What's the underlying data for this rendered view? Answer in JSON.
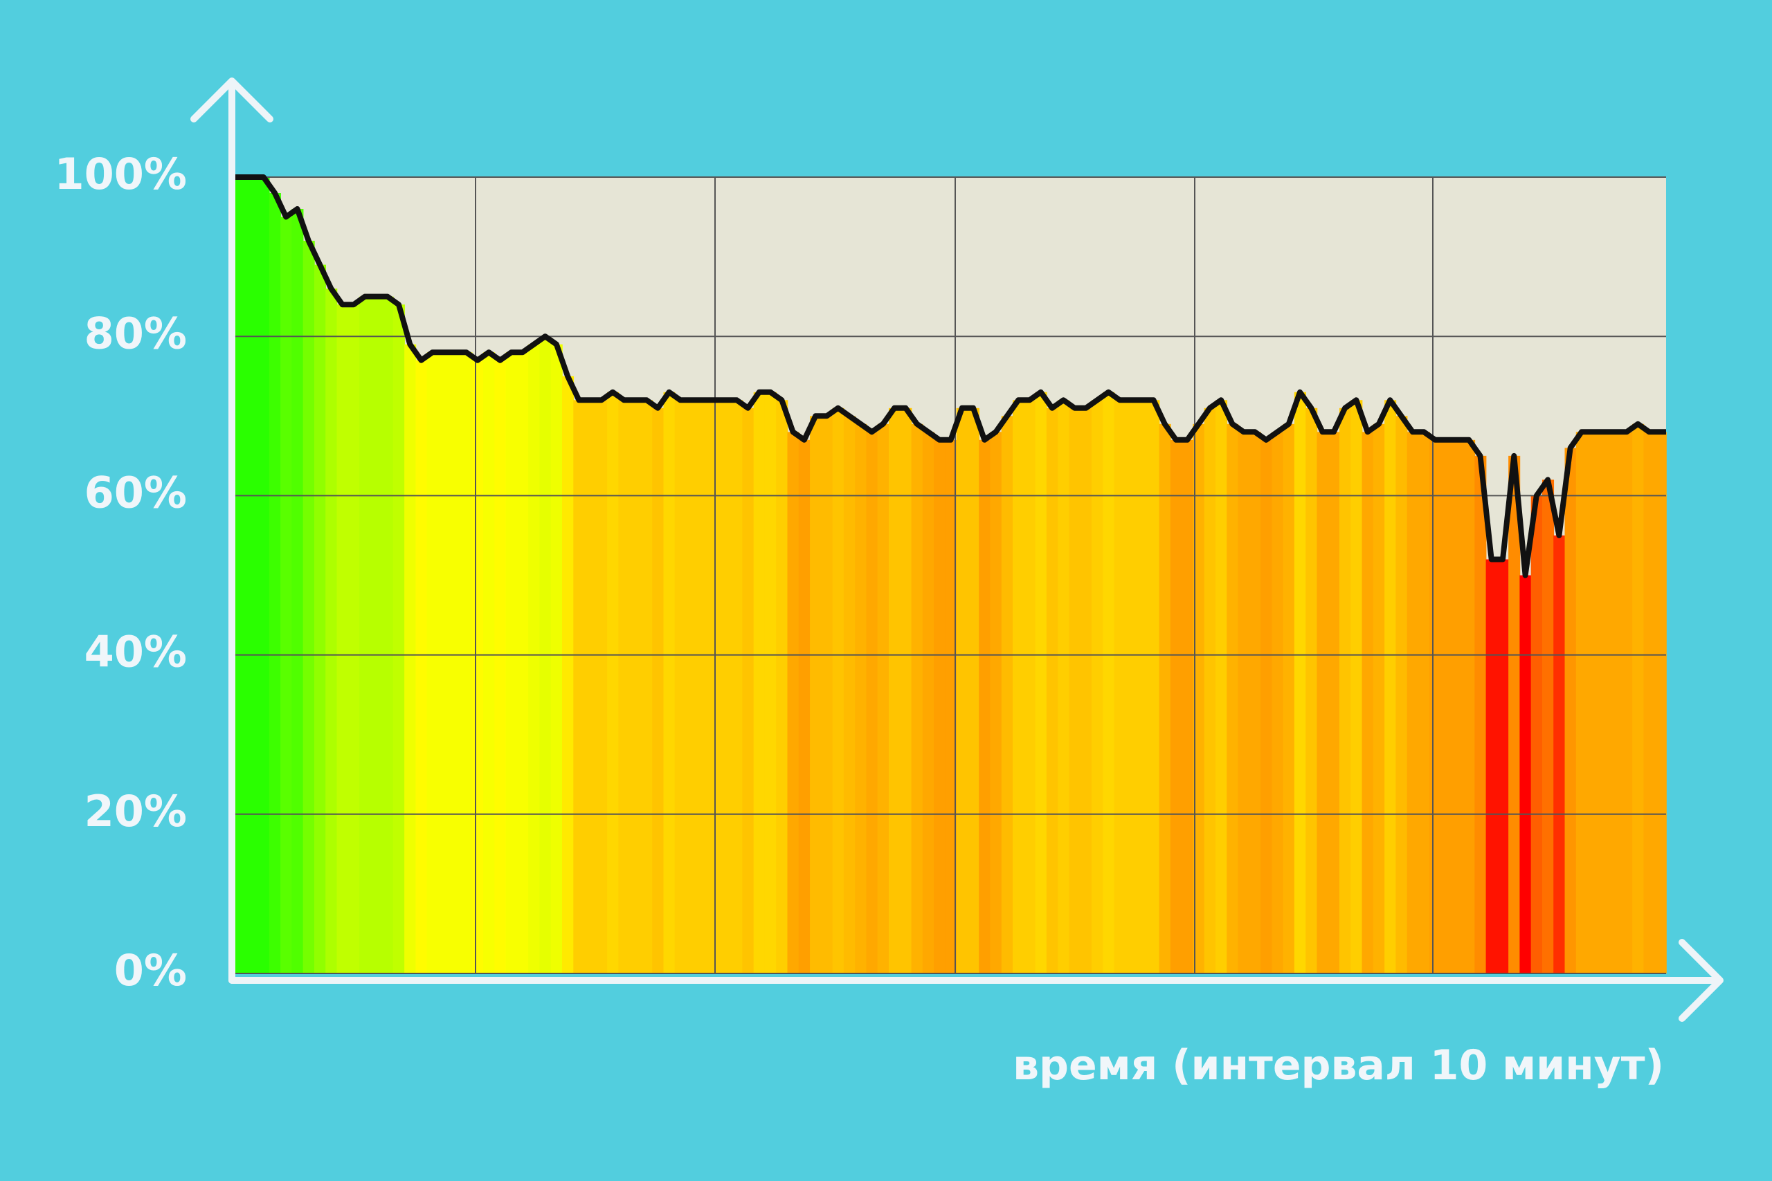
{
  "chart_data": {
    "type": "area",
    "x_label": "время (интервал 10 минут)",
    "ylim": [
      0,
      100
    ],
    "yticks": [
      {
        "value": 0,
        "label": "0%"
      },
      {
        "value": 20,
        "label": "20%"
      },
      {
        "value": 40,
        "label": "40%"
      },
      {
        "value": 60,
        "label": "60%"
      },
      {
        "value": 80,
        "label": "80%"
      },
      {
        "value": 100,
        "label": "100%"
      }
    ],
    "grid": true,
    "line_color": "#111111",
    "values": [
      100,
      100,
      100,
      98,
      95,
      96,
      92,
      89,
      86,
      84,
      84,
      85,
      85,
      85,
      84,
      79,
      77,
      78,
      78,
      78,
      78,
      77,
      78,
      77,
      78,
      78,
      79,
      80,
      79,
      75,
      72,
      72,
      72,
      73,
      72,
      72,
      72,
      71,
      73,
      72,
      72,
      72,
      72,
      72,
      72,
      71,
      73,
      73,
      72,
      68,
      67,
      70,
      70,
      71,
      70,
      69,
      68,
      69,
      71,
      71,
      69,
      68,
      67,
      67,
      71,
      71,
      67,
      68,
      70,
      72,
      72,
      73,
      71,
      72,
      71,
      71,
      72,
      73,
      72,
      72,
      72,
      72,
      69,
      67,
      67,
      69,
      71,
      72,
      69,
      68,
      68,
      67,
      68,
      69,
      73,
      71,
      68,
      68,
      71,
      72,
      68,
      69,
      72,
      70,
      68,
      68,
      67,
      67,
      67,
      67,
      65,
      52,
      52,
      65,
      50,
      60,
      62,
      55,
      66,
      68,
      68,
      68,
      68,
      68,
      69,
      68,
      68
    ]
  }
}
